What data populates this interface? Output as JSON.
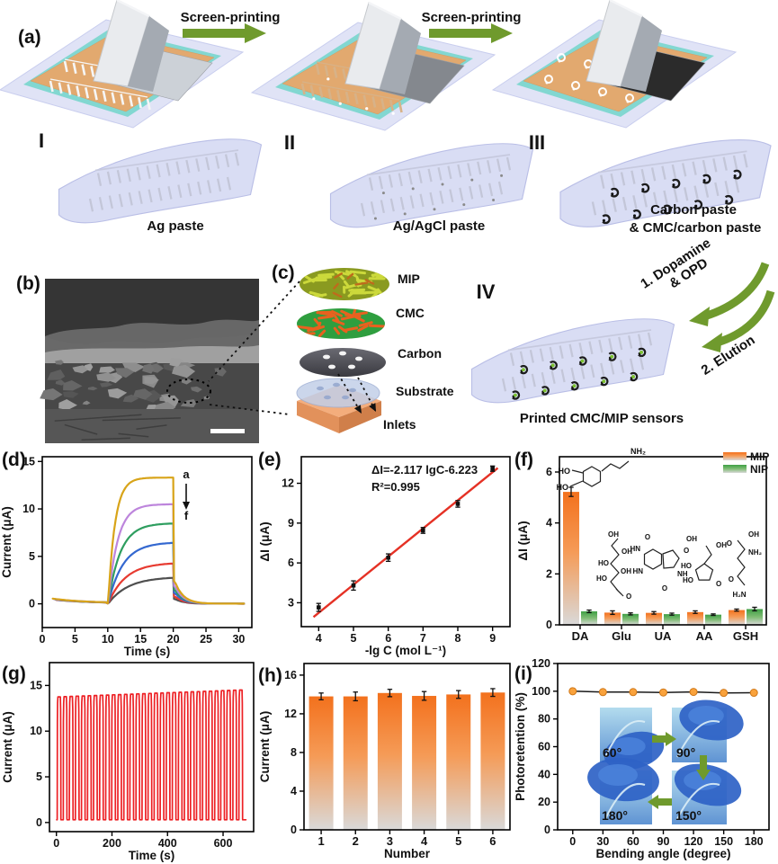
{
  "figure": {
    "colors": {
      "arrow_green": "#6F9A2D",
      "sheet_lavender": "#D9DDF4",
      "board_orange": "#E2A96F",
      "board_teal": "#82D7D1"
    },
    "panel_a": {
      "label": "(a)",
      "arrow1_label": "Screen-printing",
      "arrow2_label": "Screen-printing",
      "stages": [
        {
          "numeral": "I",
          "caption": "Ag paste"
        },
        {
          "numeral": "II",
          "caption": "Ag/AgCl paste"
        },
        {
          "numeral": "III",
          "caption_line1": "Carbon paste",
          "caption_line2": "& CMC/carbon paste"
        }
      ]
    },
    "panel_b": {
      "label": "(b)"
    },
    "panel_c": {
      "label": "(c)",
      "layers": [
        "MIP",
        "CMC",
        "Carbon",
        "Substrate"
      ],
      "inlets_label": "Inlets"
    },
    "panel_iv": {
      "numeral": "IV",
      "caption": "Printed CMC/MIP sensors",
      "arrow1_line1": "1. Dopamine",
      "arrow1_line2": "& OPD",
      "arrow2": "2. Elution"
    }
  },
  "chart_data": [
    {
      "panel": "d",
      "panel_label": "(d)",
      "type": "line",
      "xlabel": "Time (s)",
      "ylabel": "Current (μA)",
      "xlim": [
        0,
        32
      ],
      "ylim": [
        -2.5,
        15.5
      ],
      "xticks": [
        0,
        5,
        10,
        15,
        20,
        25,
        30
      ],
      "yticks": [
        0,
        5,
        10,
        15
      ],
      "step_on_s": 10,
      "step_off_s": 20,
      "annotation": {
        "top": "a",
        "bottom": "f"
      },
      "series": [
        {
          "label": "a",
          "plateau_uA": 13.3,
          "color": "#D8A419"
        },
        {
          "label": "b",
          "plateau_uA": 10.5,
          "color": "#BD85DC"
        },
        {
          "label": "c",
          "plateau_uA": 8.5,
          "color": "#2E9E5F"
        },
        {
          "label": "d",
          "plateau_uA": 6.5,
          "color": "#3468D0"
        },
        {
          "label": "e",
          "plateau_uA": 4.35,
          "color": "#E73B31"
        },
        {
          "label": "f",
          "plateau_uA": 2.85,
          "color": "#4F4F4F"
        }
      ]
    },
    {
      "panel": "e",
      "panel_label": "(e)",
      "type": "scatter",
      "xlabel": "-lg C (mol L⁻¹)",
      "ylabel": "ΔI (μA)",
      "xlim": [
        3.5,
        9.5
      ],
      "ylim": [
        1.2,
        14
      ],
      "xticks": [
        4,
        5,
        6,
        7,
        8,
        9
      ],
      "yticks": [
        3,
        6,
        9,
        12
      ],
      "points": {
        "x": [
          4,
          5,
          6,
          7,
          8,
          9
        ],
        "y": [
          2.65,
          4.3,
          6.4,
          8.45,
          10.45,
          13.1
        ],
        "yerr": [
          0.3,
          0.35,
          0.28,
          0.22,
          0.25,
          0.2
        ]
      },
      "fit": {
        "slope": 2.117,
        "intercept": -6.223,
        "color": "#E53125",
        "x_start": 3.85,
        "x_end": 9.15
      },
      "equation": "ΔI=-2.117 lgC-6.223",
      "r_squared": "R²=0.995"
    },
    {
      "panel": "f",
      "panel_label": "(f)",
      "type": "grouped-bar",
      "ylabel": "ΔI (μA)",
      "categories": [
        "DA",
        "Glu",
        "UA",
        "AA",
        "GSH"
      ],
      "ylim": [
        0,
        6.6
      ],
      "yticks": [
        0,
        2,
        4,
        6
      ],
      "series": [
        {
          "name": "MIP",
          "color_top": "#F3711D",
          "values": [
            5.22,
            0.48,
            0.47,
            0.5,
            0.58
          ],
          "errors": [
            0.18,
            0.07,
            0.05,
            0.05,
            0.04
          ]
        },
        {
          "name": "NIP",
          "color_top": "#3FA045",
          "values": [
            0.53,
            0.43,
            0.42,
            0.4,
            0.62
          ],
          "errors": [
            0.05,
            0.04,
            0.04,
            0.03,
            0.07
          ]
        }
      ],
      "structures": [
        {
          "name": "dopamine",
          "labels": [
            "HO",
            "HO",
            "NH₂"
          ]
        },
        {
          "name": "glucose",
          "labels": [
            "OH",
            "HO",
            "HO",
            "OH",
            "OH",
            "O"
          ]
        },
        {
          "name": "uric-acid",
          "labels": [
            "O",
            "HN",
            "O",
            "HN",
            "NH",
            "O"
          ]
        },
        {
          "name": "ascorbic-acid",
          "labels": [
            "OH",
            "OH",
            "HO",
            "HO",
            "O"
          ]
        },
        {
          "name": "glutathione",
          "labels": [
            "OH",
            "NH₂",
            "O",
            "O",
            "H₂N"
          ]
        }
      ]
    },
    {
      "panel": "g",
      "panel_label": "(g)",
      "type": "pulse-line",
      "xlabel": "Time (s)",
      "ylabel": "Current (μA)",
      "xlim": [
        -25,
        710
      ],
      "ylim": [
        -1,
        17.5
      ],
      "xticks": [
        0,
        200,
        400,
        600
      ],
      "yticks": [
        0,
        5,
        10,
        15
      ],
      "n_pulses": 31,
      "period_s": 21.8,
      "first_pulse_s": 3,
      "duty": 0.6,
      "peak_start_uA": 13.75,
      "peak_end_uA": 14.5,
      "baseline_uA": 0.3,
      "color": "#ED2024"
    },
    {
      "panel": "h",
      "panel_label": "(h)",
      "type": "bar",
      "xlabel": "Number",
      "ylabel": "Current (μA)",
      "categories": [
        "1",
        "2",
        "3",
        "4",
        "5",
        "6"
      ],
      "values": [
        13.8,
        13.8,
        14.15,
        13.85,
        14.0,
        14.2
      ],
      "errors": [
        0.35,
        0.45,
        0.38,
        0.45,
        0.4,
        0.4
      ],
      "ylim": [
        0,
        17.2
      ],
      "yticks": [
        0,
        4,
        8,
        12,
        16
      ],
      "bar_color_top": "#F3711D"
    },
    {
      "panel": "i",
      "panel_label": "(i)",
      "type": "line-scatter",
      "xlabel": "Bending angle (degree)",
      "ylabel": "Photoretention (%)",
      "x": [
        0,
        30,
        60,
        90,
        120,
        150,
        180
      ],
      "values": [
        100,
        99.4,
        99.4,
        99.1,
        99.5,
        98.8,
        98.9
      ],
      "xlim": [
        -15,
        195
      ],
      "ylim": [
        0,
        120
      ],
      "xticks": [
        0,
        30,
        60,
        90,
        120,
        150,
        180
      ],
      "yticks": [
        0,
        20,
        40,
        60,
        80,
        100,
        120
      ],
      "marker_color": "#F9A23C",
      "line_color": "#1A1A1A",
      "inset_photos": [
        {
          "label": "60°"
        },
        {
          "label": "90°"
        },
        {
          "label": "180°"
        },
        {
          "label": "150°"
        }
      ]
    }
  ]
}
